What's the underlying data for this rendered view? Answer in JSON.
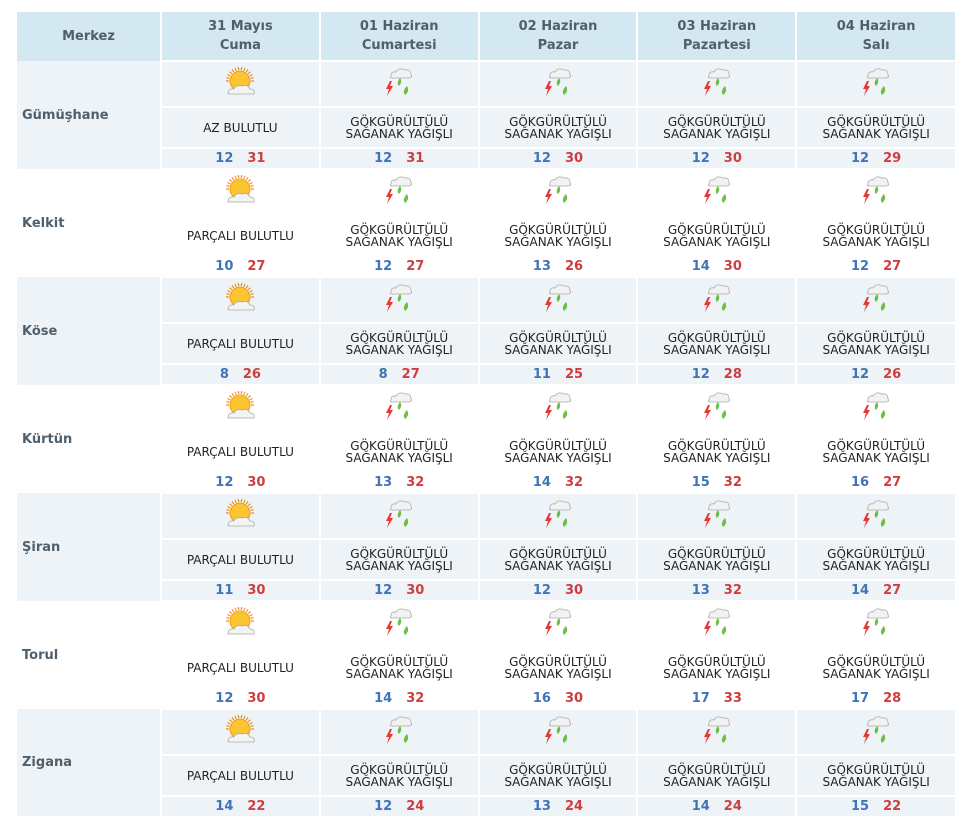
{
  "header": {
    "first": "Merkez",
    "days": [
      {
        "date": "31 Mayıs",
        "weekday": "Cuma"
      },
      {
        "date": "01 Haziran",
        "weekday": "Cumartesi"
      },
      {
        "date": "02 Haziran",
        "weekday": "Pazar"
      },
      {
        "date": "03 Haziran",
        "weekday": "Pazartesi"
      },
      {
        "date": "04 Haziran",
        "weekday": "Salı"
      }
    ]
  },
  "conditions": {
    "az": {
      "label": "AZ BULUTLU",
      "icon": "sun-cloud-icon"
    },
    "parcali": {
      "label": "PARÇALI BULUTLU",
      "icon": "sun-cloud-icon"
    },
    "storm": {
      "label": "GÖKGÜRÜLTÜLÜ SAĞANAK YAĞIŞLI",
      "icon": "thunderstorm-icon"
    }
  },
  "colors": {
    "low": "#3f74b8",
    "high": "#cf3d40"
  },
  "rows": [
    {
      "name": "Gümüşhane",
      "days": [
        {
          "c": "az",
          "lo": "12",
          "hi": "31"
        },
        {
          "c": "storm",
          "lo": "12",
          "hi": "31"
        },
        {
          "c": "storm",
          "lo": "12",
          "hi": "30"
        },
        {
          "c": "storm",
          "lo": "12",
          "hi": "30"
        },
        {
          "c": "storm",
          "lo": "12",
          "hi": "29"
        }
      ]
    },
    {
      "name": "Kelkit",
      "days": [
        {
          "c": "parcali",
          "lo": "10",
          "hi": "27"
        },
        {
          "c": "storm",
          "lo": "12",
          "hi": "27"
        },
        {
          "c": "storm",
          "lo": "13",
          "hi": "26"
        },
        {
          "c": "storm",
          "lo": "14",
          "hi": "30"
        },
        {
          "c": "storm",
          "lo": "12",
          "hi": "27"
        }
      ]
    },
    {
      "name": "Köse",
      "days": [
        {
          "c": "parcali",
          "lo": "8",
          "hi": "26"
        },
        {
          "c": "storm",
          "lo": "8",
          "hi": "27"
        },
        {
          "c": "storm",
          "lo": "11",
          "hi": "25"
        },
        {
          "c": "storm",
          "lo": "12",
          "hi": "28"
        },
        {
          "c": "storm",
          "lo": "12",
          "hi": "26"
        }
      ]
    },
    {
      "name": "Kürtün",
      "days": [
        {
          "c": "parcali",
          "lo": "12",
          "hi": "30"
        },
        {
          "c": "storm",
          "lo": "13",
          "hi": "32"
        },
        {
          "c": "storm",
          "lo": "14",
          "hi": "32"
        },
        {
          "c": "storm",
          "lo": "15",
          "hi": "32"
        },
        {
          "c": "storm",
          "lo": "16",
          "hi": "27"
        }
      ]
    },
    {
      "name": "Şiran",
      "days": [
        {
          "c": "parcali",
          "lo": "11",
          "hi": "30"
        },
        {
          "c": "storm",
          "lo": "12",
          "hi": "30"
        },
        {
          "c": "storm",
          "lo": "12",
          "hi": "30"
        },
        {
          "c": "storm",
          "lo": "13",
          "hi": "32"
        },
        {
          "c": "storm",
          "lo": "14",
          "hi": "27"
        }
      ]
    },
    {
      "name": "Torul",
      "days": [
        {
          "c": "parcali",
          "lo": "12",
          "hi": "30"
        },
        {
          "c": "storm",
          "lo": "14",
          "hi": "32"
        },
        {
          "c": "storm",
          "lo": "16",
          "hi": "30"
        },
        {
          "c": "storm",
          "lo": "17",
          "hi": "33"
        },
        {
          "c": "storm",
          "lo": "17",
          "hi": "28"
        }
      ]
    },
    {
      "name": "Zigana",
      "days": [
        {
          "c": "parcali",
          "lo": "14",
          "hi": "22"
        },
        {
          "c": "storm",
          "lo": "12",
          "hi": "24"
        },
        {
          "c": "storm",
          "lo": "13",
          "hi": "24"
        },
        {
          "c": "storm",
          "lo": "14",
          "hi": "24"
        },
        {
          "c": "storm",
          "lo": "15",
          "hi": "22"
        }
      ]
    }
  ]
}
